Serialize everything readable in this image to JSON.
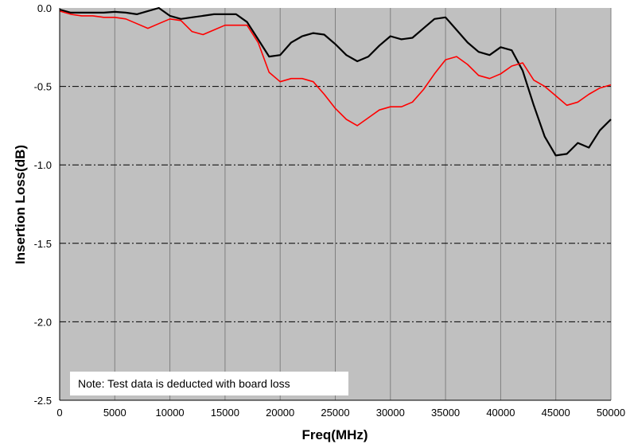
{
  "chart_data": {
    "type": "line",
    "title": "",
    "xlabel": "Freq(MHz)",
    "ylabel": "Insertion Loss(dB)",
    "xlim": [
      0,
      50000
    ],
    "ylim": [
      -2.5,
      0
    ],
    "x_ticks": [
      0,
      5000,
      10000,
      15000,
      20000,
      25000,
      30000,
      35000,
      40000,
      45000,
      50000
    ],
    "x_tick_labels": [
      "0",
      "5000",
      "10000",
      "15000",
      "20000",
      "25000",
      "30000",
      "35000",
      "40000",
      "45000",
      "50000"
    ],
    "y_ticks": [
      0,
      -0.5,
      -1,
      -1.5,
      -2,
      -2.5
    ],
    "y_tick_labels": [
      "0.0",
      "-0.5",
      "-1.0",
      "-1.5",
      "-2.0",
      "-2.5"
    ],
    "grid": "vertical-solid, horizontal-dash-dot",
    "plot_background": "#c0c0c0",
    "annotation": "Note: Test data is deducted with board loss",
    "annotation_position": "bottom-left",
    "series": [
      {
        "color": "#000000",
        "x": [
          0,
          1000,
          2000,
          3000,
          4000,
          5000,
          6000,
          7000,
          8000,
          9000,
          10000,
          11000,
          12000,
          13000,
          14000,
          15000,
          16000,
          17000,
          18000,
          19000,
          20000,
          21000,
          22000,
          23000,
          24000,
          25000,
          26000,
          27000,
          28000,
          29000,
          30000,
          31000,
          32000,
          33000,
          34000,
          35000,
          36000,
          37000,
          38000,
          39000,
          40000,
          41000,
          42000,
          43000,
          44000,
          45000,
          46000,
          47000,
          48000,
          49000,
          50000
        ],
        "values": [
          -0.01,
          -0.03,
          -0.03,
          -0.03,
          -0.03,
          -0.025,
          -0.03,
          -0.04,
          -0.02,
          -0.0,
          -0.05,
          -0.07,
          -0.06,
          -0.05,
          -0.04,
          -0.04,
          -0.04,
          -0.09,
          -0.2,
          -0.31,
          -0.3,
          -0.22,
          -0.18,
          -0.16,
          -0.17,
          -0.23,
          -0.3,
          -0.34,
          -0.31,
          -0.24,
          -0.18,
          -0.2,
          -0.19,
          -0.13,
          -0.07,
          -0.06,
          -0.14,
          -0.22,
          -0.28,
          -0.3,
          -0.25,
          -0.27,
          -0.4,
          -0.62,
          -0.82,
          -0.94,
          -0.93,
          -0.86,
          -0.89,
          -0.78,
          -0.71
        ]
      },
      {
        "color": "#ff0000",
        "x": [
          0,
          1000,
          2000,
          3000,
          4000,
          5000,
          6000,
          7000,
          8000,
          9000,
          10000,
          11000,
          12000,
          13000,
          14000,
          15000,
          16000,
          17000,
          18000,
          19000,
          20000,
          21000,
          22000,
          23000,
          24000,
          25000,
          26000,
          27000,
          28000,
          29000,
          30000,
          31000,
          32000,
          33000,
          34000,
          35000,
          36000,
          37000,
          38000,
          39000,
          40000,
          41000,
          42000,
          43000,
          44000,
          45000,
          46000,
          47000,
          48000,
          49000,
          50000
        ],
        "values": [
          -0.02,
          -0.04,
          -0.05,
          -0.05,
          -0.06,
          -0.06,
          -0.07,
          -0.1,
          -0.13,
          -0.1,
          -0.07,
          -0.08,
          -0.15,
          -0.17,
          -0.14,
          -0.11,
          -0.11,
          -0.11,
          -0.22,
          -0.41,
          -0.47,
          -0.45,
          -0.45,
          -0.47,
          -0.55,
          -0.64,
          -0.71,
          -0.75,
          -0.7,
          -0.65,
          -0.63,
          -0.63,
          -0.6,
          -0.52,
          -0.42,
          -0.33,
          -0.31,
          -0.36,
          -0.43,
          -0.45,
          -0.42,
          -0.37,
          -0.35,
          -0.46,
          -0.5,
          -0.56,
          -0.62,
          -0.6,
          -0.55,
          -0.51,
          -0.49
        ]
      }
    ]
  }
}
